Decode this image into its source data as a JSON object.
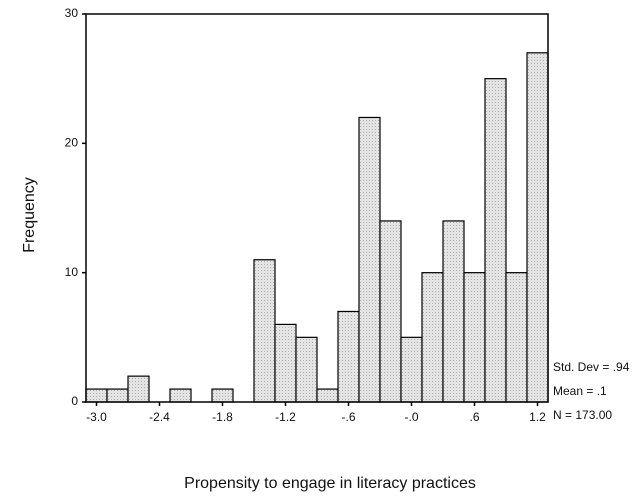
{
  "chart_data": {
    "type": "histogram",
    "y_label": "Frequency",
    "x_label": "Propensity to engage in literacy practices",
    "bins": [
      -3.1,
      -2.9,
      -2.7,
      -2.5,
      -2.3,
      -2.1,
      -1.9,
      -1.7,
      -1.5,
      -1.3,
      -1.1,
      -0.9,
      -0.7,
      -0.5,
      -0.3,
      -0.1,
      0.1,
      0.3,
      0.5,
      0.7,
      0.9,
      1.1,
      1.3
    ],
    "values": [
      1,
      1,
      2,
      0,
      1,
      0,
      1,
      0,
      11,
      6,
      5,
      1,
      7,
      22,
      14,
      5,
      10,
      14,
      10,
      25,
      10,
      27
    ],
    "color": "#e2e2e2",
    "xlim": [
      -3.1,
      1.3
    ],
    "xticks": [
      {
        "value": -3.0,
        "label": "-3.0"
      },
      {
        "value": -2.4,
        "label": "-2.4"
      },
      {
        "value": -1.8,
        "label": "-1.8"
      },
      {
        "value": -1.2,
        "label": "-1.2"
      },
      {
        "value": -0.6,
        "label": "-.6"
      },
      {
        "value": 0,
        "label": "-.0"
      },
      {
        "value": 0.6,
        "label": ".6"
      },
      {
        "value": 1.2,
        "label": "1.2"
      }
    ],
    "ylim": [
      0,
      30
    ],
    "yticks": [
      0,
      10,
      20,
      30
    ],
    "annotations": [
      "Std. Dev = .94",
      "Mean = .1",
      "N = 173.00"
    ]
  }
}
